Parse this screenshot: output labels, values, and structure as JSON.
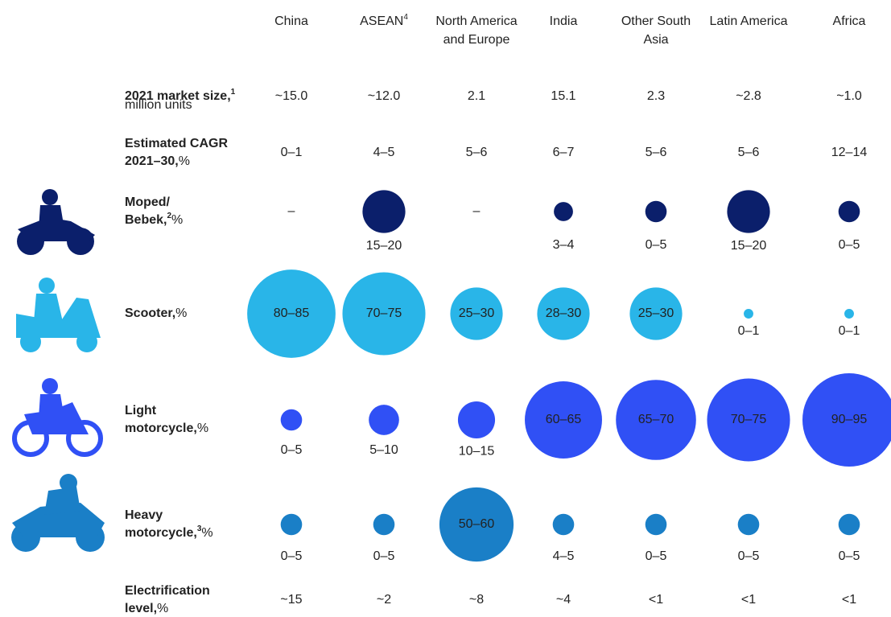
{
  "columns": [
    {
      "name": "China"
    },
    {
      "name": "ASEAN",
      "sup": "4"
    },
    {
      "name": "North America and Europe"
    },
    {
      "name": "India"
    },
    {
      "name": "Other South Asia"
    },
    {
      "name": "Latin America"
    },
    {
      "name": "Africa"
    }
  ],
  "text_rows": [
    {
      "label": "2021 market size,",
      "sup": "1",
      "rest": "million units",
      "cells": [
        "~15.0",
        "~12.0",
        "2.1",
        "15.1",
        "2.3",
        "~2.8",
        "~1.0"
      ]
    },
    {
      "label": "Estimated CAGR 2021–30,",
      "rest": "%",
      "cells": [
        "0–1",
        "4–5",
        "5–6",
        "6–7",
        "5–6",
        "5–6",
        "12–14"
      ]
    }
  ],
  "bubble_rows": [
    {
      "label": "Moped/ Bebek,",
      "sup": "2",
      "rest": "%",
      "color": "#0b1f6b",
      "text_color": "#ffffff",
      "cells": [
        {
          "label": "–"
        },
        {
          "label": "15–20",
          "low": 15,
          "high": 20
        },
        {
          "label": "–"
        },
        {
          "label": "3–4",
          "low": 3,
          "high": 4
        },
        {
          "label": "0–5",
          "low": 0,
          "high": 5
        },
        {
          "label": "15–20",
          "low": 15,
          "high": 20
        },
        {
          "label": "0–5",
          "low": 0,
          "high": 5
        }
      ]
    },
    {
      "label": "Scooter,",
      "rest": "%",
      "color": "#29b5e8",
      "text_color": "#1a2a4a",
      "cells": [
        {
          "label": "80–85",
          "low": 80,
          "high": 85
        },
        {
          "label": "70–75",
          "low": 70,
          "high": 75
        },
        {
          "label": "25–30",
          "low": 25,
          "high": 30
        },
        {
          "label": "28–30",
          "low": 28,
          "high": 30
        },
        {
          "label": "25–30",
          "low": 25,
          "high": 30
        },
        {
          "label": "0–1",
          "low": 0,
          "high": 1
        },
        {
          "label": "0–1",
          "low": 0,
          "high": 1
        }
      ]
    },
    {
      "label": "Light motorcycle,",
      "rest": "%",
      "color": "#3050f5",
      "text_color": "#ffffff",
      "cells": [
        {
          "label": "0–5",
          "low": 0,
          "high": 5
        },
        {
          "label": "5–10",
          "low": 5,
          "high": 10
        },
        {
          "label": "10–15",
          "low": 10,
          "high": 15
        },
        {
          "label": "60–65",
          "low": 60,
          "high": 65
        },
        {
          "label": "65–70",
          "low": 65,
          "high": 70
        },
        {
          "label": "70–75",
          "low": 70,
          "high": 75
        },
        {
          "label": "90–95",
          "low": 90,
          "high": 95
        }
      ]
    },
    {
      "label": "Heavy motorcycle,",
      "sup": "3",
      "rest": "%",
      "color": "#1a7fc7",
      "text_color": "#ffffff",
      "cells": [
        {
          "label": "0–5",
          "low": 0,
          "high": 5
        },
        {
          "label": "0–5",
          "low": 0,
          "high": 5
        },
        {
          "label": "50–60",
          "low": 50,
          "high": 60
        },
        {
          "label": "4–5",
          "low": 4,
          "high": 5
        },
        {
          "label": "0–5",
          "low": 0,
          "high": 5
        },
        {
          "label": "0–5",
          "low": 0,
          "high": 5
        },
        {
          "label": "0–5",
          "low": 0,
          "high": 5
        }
      ]
    }
  ],
  "footer_row": {
    "label": "Electrification level,",
    "rest": "%",
    "cells": [
      "~15",
      "~2",
      "~8",
      "~4",
      "<1",
      "<1",
      "<1"
    ]
  }
}
